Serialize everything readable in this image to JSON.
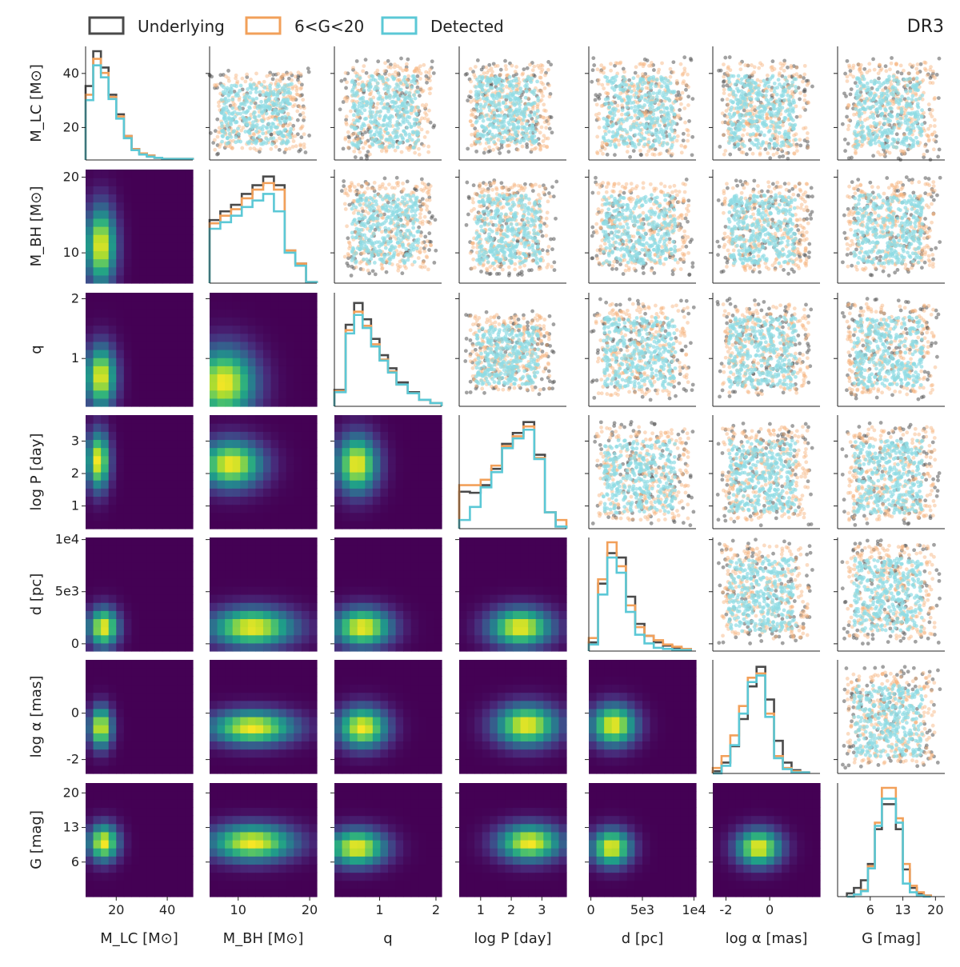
{
  "chart_data": {
    "type": "corner",
    "tag": "DR3",
    "legend": [
      {
        "label": "Underlying",
        "color": "#4a4a4a"
      },
      {
        "label": "6<G<20",
        "color": "#f2a05a"
      },
      {
        "label": "Detected",
        "color": "#5bc8d6"
      }
    ],
    "variables": [
      {
        "key": "MLC",
        "label": "M_LC [M⊙]",
        "lim": [
          8,
          50
        ],
        "ticks": [
          20,
          40
        ],
        "tick_labels": [
          "20",
          "40"
        ],
        "ylim": [
          8,
          50
        ],
        "yticks": [
          20,
          40
        ],
        "ytick_labels": [
          "20",
          "40"
        ]
      },
      {
        "key": "MBH",
        "label": "M_BH [M⊙]",
        "lim": [
          6,
          21
        ],
        "ticks": [
          10,
          20
        ],
        "tick_labels": [
          "10",
          "20"
        ],
        "ylim": [
          6,
          21
        ],
        "yticks": [
          10,
          20
        ],
        "ytick_labels": [
          "10",
          "20"
        ]
      },
      {
        "key": "q",
        "label": "q",
        "lim": [
          0.2,
          2.1
        ],
        "ticks": [
          1,
          2
        ],
        "tick_labels": [
          "1",
          "2"
        ],
        "ylim": [
          0.2,
          2.1
        ],
        "yticks": [
          1,
          2
        ],
        "ytick_labels": [
          "1",
          "2"
        ]
      },
      {
        "key": "logP",
        "label": "log P [day]",
        "lim": [
          0.3,
          3.8
        ],
        "ticks": [
          1,
          2,
          3
        ],
        "tick_labels": [
          "1",
          "2",
          "3"
        ],
        "ylim": [
          0.3,
          3.8
        ],
        "yticks": [
          1,
          2,
          3
        ],
        "ytick_labels": [
          "1",
          "2",
          "3"
        ]
      },
      {
        "key": "d",
        "label": "d [pc]",
        "lim": [
          -200,
          10200
        ],
        "ticks": [
          0,
          5000,
          10000
        ],
        "tick_labels": [
          "0",
          "5e3",
          "1e4"
        ],
        "ylim": [
          -700,
          10200
        ],
        "yticks": [
          0,
          5000,
          10000
        ],
        "ytick_labels": [
          "0",
          "5e3",
          "1e4"
        ]
      },
      {
        "key": "logalpha",
        "label": "log α [mas]",
        "lim": [
          -2.6,
          2.3
        ],
        "ticks": [
          -2,
          0
        ],
        "tick_labels": [
          "-2",
          "0"
        ],
        "ylim": [
          -2.6,
          2.3
        ],
        "yticks": [
          -2,
          0
        ],
        "ytick_labels": [
          "-2",
          "0"
        ]
      },
      {
        "key": "G",
        "label": "G [mag]",
        "lim": [
          -1,
          22
        ],
        "ticks": [
          6,
          13,
          20
        ],
        "tick_labels": [
          "6",
          "13",
          "20"
        ],
        "ylim": [
          -1,
          22
        ],
        "yticks": [
          6,
          13,
          20
        ],
        "ytick_labels": [
          "6",
          "13",
          "20"
        ]
      }
    ],
    "histograms": [
      {
        "bins": [
          8,
          11,
          14,
          17,
          20,
          23,
          26,
          29,
          32,
          35,
          38,
          41,
          44,
          47,
          50
        ],
        "Underlying": [
          0.68,
          1.0,
          0.85,
          0.6,
          0.42,
          0.22,
          0.1,
          0.06,
          0.04,
          0.02,
          0.01,
          0.01,
          0.01,
          0.01
        ],
        "Bright": [
          0.6,
          0.93,
          0.8,
          0.58,
          0.4,
          0.22,
          0.1,
          0.06,
          0.04,
          0.02,
          0.01,
          0.01,
          0.01,
          0.01
        ],
        "Detected": [
          0.55,
          0.87,
          0.76,
          0.56,
          0.38,
          0.2,
          0.09,
          0.05,
          0.03,
          0.02,
          0.01,
          0.01,
          0.01,
          0.01
        ]
      },
      {
        "bins": [
          6,
          7.5,
          9,
          10.5,
          12,
          13.5,
          15,
          16.5,
          18,
          19.5,
          21
        ],
        "Underlying": [
          0.58,
          0.66,
          0.72,
          0.82,
          0.9,
          0.98,
          0.9,
          0.3,
          0.18,
          0.01
        ],
        "Bright": [
          0.55,
          0.62,
          0.68,
          0.78,
          0.86,
          0.92,
          0.86,
          0.3,
          0.18,
          0.01
        ],
        "Detected": [
          0.5,
          0.56,
          0.62,
          0.7,
          0.76,
          0.82,
          0.66,
          0.28,
          0.16,
          0.01
        ]
      },
      {
        "bins": [
          0.2,
          0.4,
          0.55,
          0.7,
          0.85,
          1.0,
          1.15,
          1.3,
          1.5,
          1.7,
          1.9,
          2.1
        ],
        "Underlying": [
          0.15,
          0.75,
          0.95,
          0.8,
          0.62,
          0.47,
          0.35,
          0.22,
          0.13,
          0.06,
          0.03
        ],
        "Bright": [
          0.14,
          0.7,
          0.87,
          0.74,
          0.57,
          0.43,
          0.32,
          0.2,
          0.12,
          0.06,
          0.03
        ],
        "Detected": [
          0.13,
          0.67,
          0.84,
          0.72,
          0.55,
          0.42,
          0.31,
          0.2,
          0.12,
          0.06,
          0.03
        ]
      },
      {
        "bins": [
          0.3,
          0.65,
          1.0,
          1.35,
          1.7,
          2.05,
          2.4,
          2.75,
          3.1,
          3.45,
          3.8
        ],
        "Underlying": [
          0.34,
          0.33,
          0.4,
          0.55,
          0.78,
          0.88,
          0.98,
          0.68,
          0.15,
          0.02
        ],
        "Bright": [
          0.4,
          0.4,
          0.45,
          0.58,
          0.76,
          0.85,
          0.94,
          0.65,
          0.15,
          0.08
        ],
        "Detected": [
          0.08,
          0.2,
          0.38,
          0.52,
          0.74,
          0.83,
          0.91,
          0.64,
          0.15,
          0.02
        ]
      },
      {
        "bins": [
          -200,
          700,
          1600,
          2500,
          3400,
          4300,
          5200,
          6100,
          7000,
          7900,
          8800,
          9700
        ],
        "Underlying": [
          0.08,
          0.62,
          0.9,
          0.86,
          0.5,
          0.25,
          0.14,
          0.08,
          0.05,
          0.03,
          0.02
        ],
        "Bright": [
          0.12,
          0.66,
          1.0,
          0.78,
          0.42,
          0.22,
          0.14,
          0.1,
          0.06,
          0.04,
          0.02
        ],
        "Detected": [
          0.06,
          0.52,
          0.86,
          0.72,
          0.36,
          0.15,
          0.07,
          0.03,
          0.02,
          0.01,
          0.01
        ]
      },
      {
        "bins": [
          -2.6,
          -2.2,
          -1.8,
          -1.4,
          -1.0,
          -0.6,
          -0.2,
          0.2,
          0.6,
          1.0,
          1.4,
          1.8
        ],
        "Underlying": [
          0.02,
          0.1,
          0.25,
          0.5,
          0.8,
          0.98,
          0.68,
          0.3,
          0.1,
          0.03,
          0.01
        ],
        "Bright": [
          0.05,
          0.16,
          0.35,
          0.62,
          0.88,
          0.92,
          0.55,
          0.16,
          0.05,
          0.02,
          0.01
        ],
        "Detected": [
          0.0,
          0.07,
          0.26,
          0.55,
          0.84,
          0.9,
          0.52,
          0.14,
          0.04,
          0.01,
          0.01
        ]
      },
      {
        "bins": [
          1,
          2.5,
          4,
          5.5,
          7,
          8.5,
          10,
          11.5,
          13,
          14.5,
          16,
          17.5,
          19
        ],
        "Underlying": [
          0.03,
          0.08,
          0.15,
          0.3,
          0.62,
          0.85,
          0.85,
          0.62,
          0.25,
          0.08,
          0.03,
          0.01
        ],
        "Bright": [
          0.0,
          0.02,
          0.06,
          0.28,
          0.68,
          1.0,
          1.0,
          0.72,
          0.3,
          0.1,
          0.04,
          0.01
        ],
        "Detected": [
          0.0,
          0.02,
          0.05,
          0.26,
          0.65,
          0.9,
          0.9,
          0.68,
          0.12,
          0.04,
          0.01,
          0.0
        ]
      }
    ],
    "heatmap_peaks": [
      {
        "row": 1,
        "col": 0,
        "peak": [
          14,
          11
        ],
        "spread": [
          4,
          3.5
        ]
      },
      {
        "row": 2,
        "col": 0,
        "peak": [
          14,
          0.7
        ],
        "spread": [
          4,
          0.35
        ]
      },
      {
        "row": 2,
        "col": 1,
        "peak": [
          8,
          0.6
        ],
        "spread": [
          3,
          0.4
        ]
      },
      {
        "row": 3,
        "col": 0,
        "peak": [
          13,
          2.4
        ],
        "spread": [
          3,
          0.6
        ]
      },
      {
        "row": 3,
        "col": 1,
        "peak": [
          9,
          2.3
        ],
        "spread": [
          3,
          0.5
        ]
      },
      {
        "row": 3,
        "col": 2,
        "peak": [
          0.6,
          2.3
        ],
        "spread": [
          0.25,
          0.6
        ]
      },
      {
        "row": 4,
        "col": 0,
        "peak": [
          15,
          2000
        ],
        "spread": [
          4,
          1200
        ]
      },
      {
        "row": 4,
        "col": 1,
        "peak": [
          12,
          2000
        ],
        "spread": [
          4,
          1200
        ]
      },
      {
        "row": 4,
        "col": 2,
        "peak": [
          0.7,
          2000
        ],
        "spread": [
          0.35,
          1200
        ]
      },
      {
        "row": 4,
        "col": 3,
        "peak": [
          2.3,
          2000
        ],
        "spread": [
          0.7,
          1200
        ]
      },
      {
        "row": 5,
        "col": 0,
        "peak": [
          14,
          -0.6
        ],
        "spread": [
          3,
          0.6
        ]
      },
      {
        "row": 5,
        "col": 1,
        "peak": [
          12,
          -0.6
        ],
        "spread": [
          4,
          0.5
        ]
      },
      {
        "row": 5,
        "col": 2,
        "peak": [
          0.7,
          -0.6
        ],
        "spread": [
          0.3,
          0.6
        ]
      },
      {
        "row": 5,
        "col": 3,
        "peak": [
          2.5,
          -0.5
        ],
        "spread": [
          0.7,
          0.6
        ]
      },
      {
        "row": 5,
        "col": 4,
        "peak": [
          2200,
          -0.5
        ],
        "spread": [
          1500,
          0.6
        ]
      },
      {
        "row": 6,
        "col": 0,
        "peak": [
          15,
          10
        ],
        "spread": [
          4,
          2.5
        ]
      },
      {
        "row": 6,
        "col": 1,
        "peak": [
          12,
          10
        ],
        "spread": [
          4,
          2.5
        ]
      },
      {
        "row": 6,
        "col": 2,
        "peak": [
          0.6,
          9
        ],
        "spread": [
          0.35,
          2.5
        ]
      },
      {
        "row": 6,
        "col": 3,
        "peak": [
          2.6,
          10
        ],
        "spread": [
          0.7,
          2.5
        ]
      },
      {
        "row": 6,
        "col": 4,
        "peak": [
          2000,
          9
        ],
        "spread": [
          1300,
          2.5
        ]
      },
      {
        "row": 6,
        "col": 5,
        "peak": [
          -0.5,
          9
        ],
        "spread": [
          0.7,
          2.5
        ]
      }
    ],
    "scatter_regions": [
      {
        "row": 0,
        "col": 1,
        "x": [
          6,
          20
        ],
        "y": [
          10,
          42
        ]
      },
      {
        "row": 0,
        "col": 2,
        "x": [
          0.3,
          2.0
        ],
        "y": [
          8,
          46
        ]
      },
      {
        "row": 0,
        "col": 3,
        "x": [
          0.5,
          3.4
        ],
        "y": [
          10,
          45
        ]
      },
      {
        "row": 0,
        "col": 4,
        "x": [
          0,
          10000
        ],
        "y": [
          8,
          46
        ]
      },
      {
        "row": 0,
        "col": 5,
        "x": [
          -2.4,
          2.0
        ],
        "y": [
          8,
          46
        ]
      },
      {
        "row": 0,
        "col": 6,
        "x": [
          0,
          21
        ],
        "y": [
          8,
          46
        ]
      },
      {
        "row": 1,
        "col": 2,
        "x": [
          0.3,
          2.0
        ],
        "y": [
          7,
          20
        ]
      },
      {
        "row": 1,
        "col": 3,
        "x": [
          0.5,
          3.5
        ],
        "y": [
          7,
          20
        ]
      },
      {
        "row": 1,
        "col": 4,
        "x": [
          0,
          10000
        ],
        "y": [
          7,
          20
        ]
      },
      {
        "row": 1,
        "col": 5,
        "x": [
          -2.4,
          2.0
        ],
        "y": [
          7,
          20
        ]
      },
      {
        "row": 1,
        "col": 6,
        "x": [
          0,
          21
        ],
        "y": [
          7,
          20
        ]
      },
      {
        "row": 2,
        "col": 3,
        "x": [
          0.5,
          3.4
        ],
        "y": [
          0.4,
          1.8
        ]
      },
      {
        "row": 2,
        "col": 4,
        "x": [
          0,
          10000
        ],
        "y": [
          0.3,
          2.0
        ]
      },
      {
        "row": 2,
        "col": 5,
        "x": [
          -2.4,
          2.0
        ],
        "y": [
          0.3,
          2.0
        ]
      },
      {
        "row": 2,
        "col": 6,
        "x": [
          0,
          21
        ],
        "y": [
          0.3,
          2.0
        ]
      },
      {
        "row": 3,
        "col": 4,
        "x": [
          0,
          10000
        ],
        "y": [
          0.4,
          3.6
        ]
      },
      {
        "row": 3,
        "col": 5,
        "x": [
          -2.4,
          2.0
        ],
        "y": [
          0.4,
          3.6
        ]
      },
      {
        "row": 3,
        "col": 6,
        "x": [
          0,
          21
        ],
        "y": [
          0.4,
          3.6
        ]
      },
      {
        "row": 4,
        "col": 5,
        "x": [
          -2.4,
          2.0
        ],
        "y": [
          0,
          10000
        ]
      },
      {
        "row": 4,
        "col": 6,
        "x": [
          0,
          21
        ],
        "y": [
          0,
          10000
        ]
      },
      {
        "row": 5,
        "col": 6,
        "x": [
          0,
          21
        ],
        "y": [
          -2.4,
          2.0
        ]
      }
    ]
  }
}
